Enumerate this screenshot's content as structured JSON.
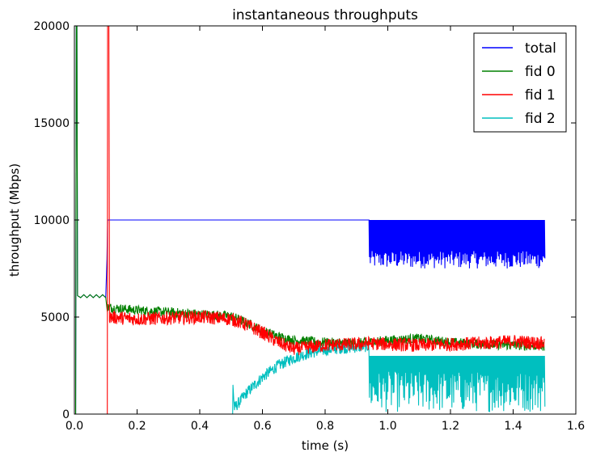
{
  "chart_data": {
    "type": "line",
    "title": "instantaneous throughputs",
    "xlabel": "time (s)",
    "ylabel": "throughput (Mbps)",
    "xlim": [
      0,
      1.6
    ],
    "ylim": [
      0,
      20000
    ],
    "xticks": [
      0.0,
      0.2,
      0.4,
      0.6,
      0.8,
      1.0,
      1.2,
      1.4,
      1.6
    ],
    "xtick_labels": [
      "0.0",
      "0.2",
      "0.4",
      "0.6",
      "0.8",
      "1.0",
      "1.2",
      "1.4",
      "1.6"
    ],
    "yticks": [
      0,
      5000,
      10000,
      15000,
      20000
    ],
    "ytick_labels": [
      "0",
      "5000",
      "10000",
      "15000",
      "20000"
    ],
    "grid": false,
    "legend_position": "top-right",
    "series": [
      {
        "name": "total",
        "color": "#0000ff",
        "points": [
          [
            0.0,
            0
          ],
          [
            0.004,
            0
          ],
          [
            0.006,
            20000
          ],
          [
            0.008,
            20000
          ],
          [
            0.01,
            6100
          ],
          [
            0.02,
            6000
          ],
          [
            0.03,
            6150
          ],
          [
            0.04,
            6000
          ],
          [
            0.05,
            6150
          ],
          [
            0.06,
            6000
          ],
          [
            0.07,
            6150
          ],
          [
            0.08,
            6000
          ],
          [
            0.09,
            6150
          ],
          [
            0.1,
            6000
          ],
          [
            0.104,
            8000
          ],
          [
            0.106,
            10000
          ],
          [
            0.94,
            10000
          ]
        ],
        "oscillation": {
          "x_start": 0.94,
          "x_end": 1.5,
          "high": 10000,
          "low_min": 7500,
          "low_max": 8400
        }
      },
      {
        "name": "fid 0",
        "color": "#008000",
        "points": [
          [
            0.0,
            0
          ],
          [
            0.004,
            0
          ],
          [
            0.006,
            20000
          ],
          [
            0.008,
            20000
          ],
          [
            0.01,
            6100
          ],
          [
            0.02,
            6000
          ],
          [
            0.03,
            6150
          ],
          [
            0.04,
            6000
          ],
          [
            0.05,
            6150
          ],
          [
            0.06,
            6000
          ],
          [
            0.07,
            6150
          ],
          [
            0.08,
            6000
          ],
          [
            0.09,
            6150
          ],
          [
            0.1,
            6000
          ],
          [
            0.105,
            5500
          ],
          [
            0.2,
            5350
          ],
          [
            0.3,
            5250
          ],
          [
            0.4,
            5150
          ],
          [
            0.5,
            5050
          ],
          [
            0.55,
            4700
          ],
          [
            0.6,
            4300
          ],
          [
            0.65,
            4000
          ],
          [
            0.7,
            3800
          ],
          [
            0.8,
            3700
          ],
          [
            0.9,
            3650
          ],
          [
            0.94,
            3700
          ],
          [
            1.0,
            3800
          ],
          [
            1.1,
            3900
          ],
          [
            1.2,
            3700
          ],
          [
            1.3,
            3600
          ],
          [
            1.4,
            3550
          ],
          [
            1.5,
            3500
          ]
        ],
        "noise": 250
      },
      {
        "name": "fid 1",
        "color": "#ff0000",
        "points": [
          [
            0.0,
            0
          ],
          [
            0.105,
            0
          ],
          [
            0.106,
            20000
          ],
          [
            0.11,
            20000
          ],
          [
            0.112,
            5000
          ],
          [
            0.2,
            4900
          ],
          [
            0.3,
            4950
          ],
          [
            0.4,
            5000
          ],
          [
            0.5,
            4900
          ],
          [
            0.55,
            4600
          ],
          [
            0.6,
            4200
          ],
          [
            0.65,
            3700
          ],
          [
            0.7,
            3350
          ],
          [
            0.8,
            3550
          ],
          [
            0.9,
            3600
          ],
          [
            0.94,
            3650
          ],
          [
            1.0,
            3600
          ],
          [
            1.1,
            3550
          ],
          [
            1.2,
            3600
          ],
          [
            1.3,
            3650
          ],
          [
            1.4,
            3750
          ],
          [
            1.5,
            3650
          ]
        ],
        "noise": 350
      },
      {
        "name": "fid 2",
        "color": "#00bfbf",
        "points": [
          [
            0.0,
            0
          ],
          [
            0.505,
            0
          ],
          [
            0.506,
            1600
          ],
          [
            0.51,
            300
          ],
          [
            0.55,
            1100
          ],
          [
            0.6,
            1900
          ],
          [
            0.65,
            2500
          ],
          [
            0.7,
            2900
          ],
          [
            0.75,
            3150
          ],
          [
            0.8,
            3300
          ],
          [
            0.85,
            3400
          ],
          [
            0.9,
            3450
          ],
          [
            0.94,
            3500
          ]
        ],
        "noise": 300,
        "oscillation": {
          "x_start": 0.94,
          "x_end": 1.5,
          "high": 3000,
          "low_min": 100,
          "low_max": 2200
        }
      }
    ]
  }
}
